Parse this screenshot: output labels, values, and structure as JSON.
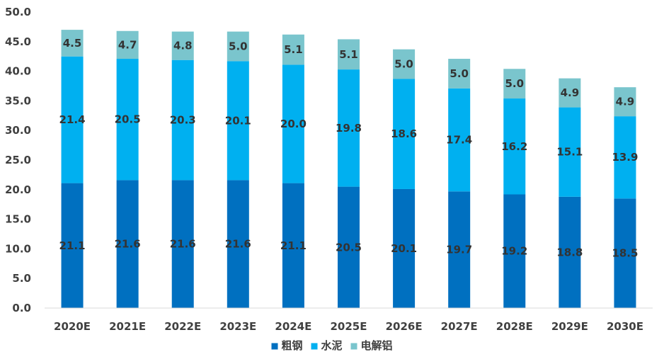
{
  "chart_data": {
    "type": "bar",
    "stacked": true,
    "categories": [
      "2020E",
      "2021E",
      "2022E",
      "2023E",
      "2024E",
      "2025E",
      "2026E",
      "2027E",
      "2028E",
      "2029E",
      "2030E"
    ],
    "series": [
      {
        "name": "粗钢",
        "color": "#0070C0",
        "values": [
          21.1,
          21.6,
          21.6,
          21.6,
          21.1,
          20.5,
          20.1,
          19.7,
          19.2,
          18.8,
          18.5
        ]
      },
      {
        "name": "水泥",
        "color": "#00B0F0",
        "values": [
          21.4,
          20.5,
          20.3,
          20.1,
          20.0,
          19.8,
          18.6,
          17.4,
          16.2,
          15.1,
          13.9
        ]
      },
      {
        "name": "电解铝",
        "color": "#7AC5CD",
        "values": [
          4.5,
          4.7,
          4.8,
          5.0,
          5.1,
          5.1,
          5.0,
          5.0,
          5.0,
          4.9,
          4.9
        ]
      }
    ],
    "ylim": [
      0,
      50
    ],
    "yticks": [
      "0.0",
      "5.0",
      "10.0",
      "15.0",
      "20.0",
      "25.0",
      "30.0",
      "35.0",
      "40.0",
      "45.0",
      "50.0"
    ],
    "title": "",
    "xlabel": "",
    "ylabel": "",
    "grid": false,
    "legend_position": "bottom",
    "value_decimals": 1
  }
}
